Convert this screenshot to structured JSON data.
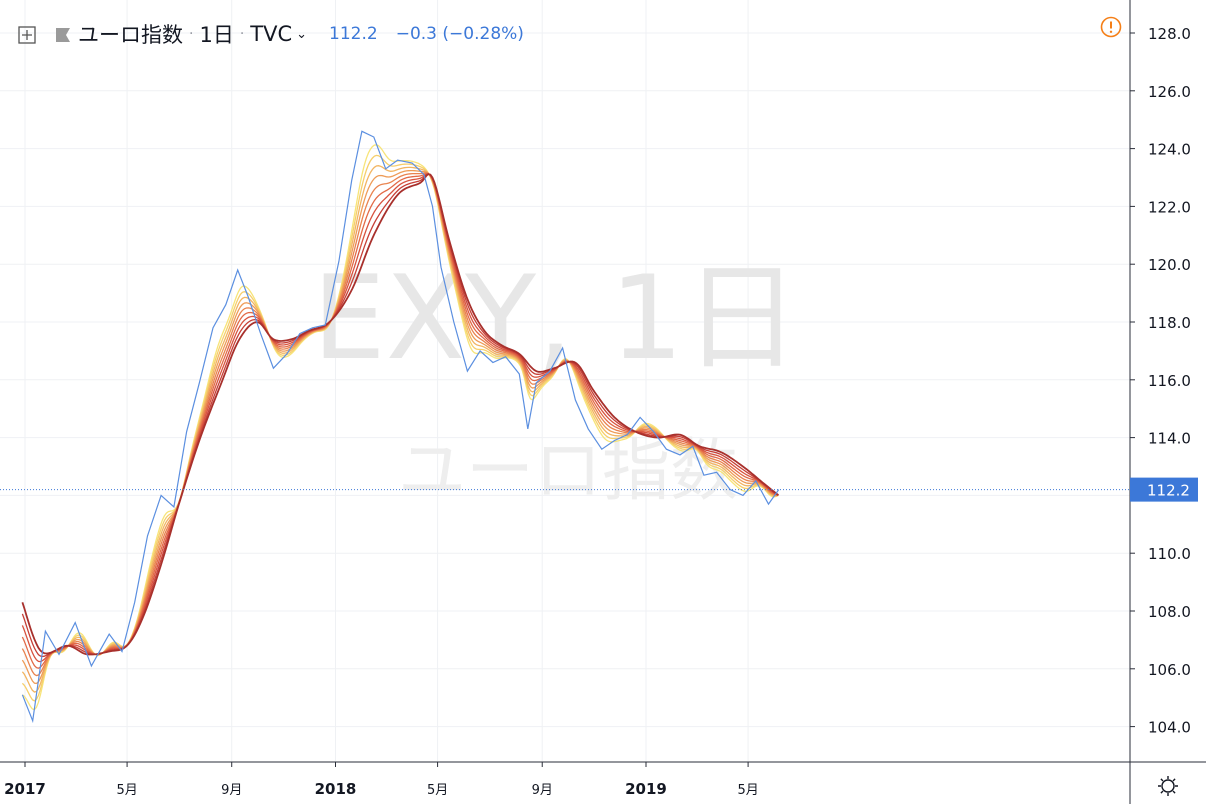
{
  "header": {
    "symbol_name": "ユーロ指数",
    "interval": "1日",
    "source": "TVC",
    "last": "112.2",
    "change": "−0.3 (−0.28%)"
  },
  "watermark": {
    "symbol": "EXY, 1日",
    "description": "ユーロ指数"
  },
  "icons": {
    "add": "plus-square-icon",
    "flag": "flag-icon",
    "chevron": "chevron-down-icon",
    "alert": "alert-circle-icon",
    "settings": "gear-icon"
  },
  "colors": {
    "price_line": "#5b8fe0",
    "price_label_bg": "#3c78d8",
    "alert": "#f57f17",
    "ribbon": [
      "#f7e479",
      "#f6cf6c",
      "#f2b562",
      "#ee9c58",
      "#e9834f",
      "#e26a47",
      "#d8533f",
      "#c63f36",
      "#a8302c"
    ]
  },
  "chart_data": {
    "type": "line",
    "ylim": [
      103.5,
      128.6
    ],
    "yticks": [
      "128.0",
      "126.0",
      "124.0",
      "122.0",
      "120.0",
      "118.0",
      "116.0",
      "114.0",
      "112.0",
      "110.0",
      "108.0",
      "106.0",
      "104.0"
    ],
    "xticks": [
      "2017",
      "5月",
      "9月",
      "2018",
      "5月",
      "9月",
      "2019",
      "5月"
    ],
    "last_price_label": "112.2",
    "series": [
      {
        "x": [
          "2016-12-29",
          "2017-01-10",
          "2017-01-25",
          "2017-02-10",
          "2017-03-01",
          "2017-03-20",
          "2017-04-10",
          "2017-04-25",
          "2017-05-10",
          "2017-05-25",
          "2017-06-10",
          "2017-06-25",
          "2017-07-10",
          "2017-07-25",
          "2017-08-10",
          "2017-08-25",
          "2017-09-08",
          "2017-09-20",
          "2017-10-05",
          "2017-10-20",
          "2017-11-05",
          "2017-11-20",
          "2017-12-05",
          "2017-12-20",
          "2018-01-05",
          "2018-01-20",
          "2018-02-01",
          "2018-02-15",
          "2018-03-01",
          "2018-03-15",
          "2018-04-01",
          "2018-04-15",
          "2018-04-25",
          "2018-05-05",
          "2018-05-20",
          "2018-06-05",
          "2018-06-20",
          "2018-07-05",
          "2018-07-20",
          "2018-08-05",
          "2018-08-15",
          "2018-08-25",
          "2018-09-10",
          "2018-09-25",
          "2018-10-10",
          "2018-10-25",
          "2018-11-10",
          "2018-11-25",
          "2018-12-10",
          "2018-12-25",
          "2019-01-10",
          "2019-01-25",
          "2019-02-10",
          "2019-02-25",
          "2019-03-10",
          "2019-03-25",
          "2019-04-10",
          "2019-04-25",
          "2019-05-10",
          "2019-05-25",
          "2019-06-06"
        ],
        "values": [
          105.1,
          104.2,
          107.3,
          106.5,
          107.6,
          106.1,
          107.2,
          106.6,
          108.3,
          110.6,
          112.0,
          111.6,
          114.2,
          115.9,
          117.8,
          118.6,
          119.8,
          118.9,
          117.6,
          116.4,
          116.9,
          117.6,
          117.8,
          117.9,
          120.1,
          122.9,
          124.6,
          124.4,
          123.3,
          123.6,
          123.5,
          123.1,
          122.0,
          119.9,
          118.0,
          116.3,
          117.0,
          116.6,
          116.8,
          116.2,
          114.3,
          115.9,
          116.3,
          117.1,
          115.3,
          114.3,
          113.6,
          113.9,
          114.1,
          114.7,
          114.2,
          113.6,
          113.4,
          113.7,
          112.7,
          112.8,
          112.2,
          112.0,
          112.5,
          111.7,
          112.2
        ]
      },
      {
        "x": [
          "2016-12-29",
          "2017-01-20",
          "2017-02-20",
          "2017-03-15",
          "2017-04-10",
          "2017-05-01",
          "2017-05-20",
          "2017-06-10",
          "2017-07-01",
          "2017-07-25",
          "2017-08-20",
          "2017-09-10",
          "2017-10-01",
          "2017-10-20",
          "2017-11-10",
          "2017-12-01",
          "2017-12-25",
          "2018-01-20",
          "2018-02-15",
          "2018-03-15",
          "2018-04-10",
          "2018-04-25",
          "2018-05-15",
          "2018-06-05",
          "2018-06-25",
          "2018-07-15",
          "2018-08-05",
          "2018-08-25",
          "2018-09-15",
          "2018-10-10",
          "2018-11-01",
          "2018-11-25",
          "2018-12-20",
          "2019-01-15",
          "2019-02-10",
          "2019-03-05",
          "2019-03-30",
          "2019-04-25",
          "2019-05-20",
          "2019-06-06"
        ],
        "values": [
          108.3,
          106.6,
          106.8,
          106.5,
          106.6,
          106.8,
          107.8,
          109.6,
          111.7,
          113.9,
          115.9,
          117.4,
          118.0,
          117.4,
          117.4,
          117.7,
          118.0,
          119.1,
          121.0,
          122.4,
          122.8,
          123.0,
          120.8,
          118.8,
          117.7,
          117.2,
          116.9,
          116.3,
          116.4,
          116.6,
          115.6,
          114.7,
          114.2,
          114.0,
          114.1,
          113.7,
          113.5,
          113.0,
          112.4,
          112.0
        ]
      }
    ]
  }
}
